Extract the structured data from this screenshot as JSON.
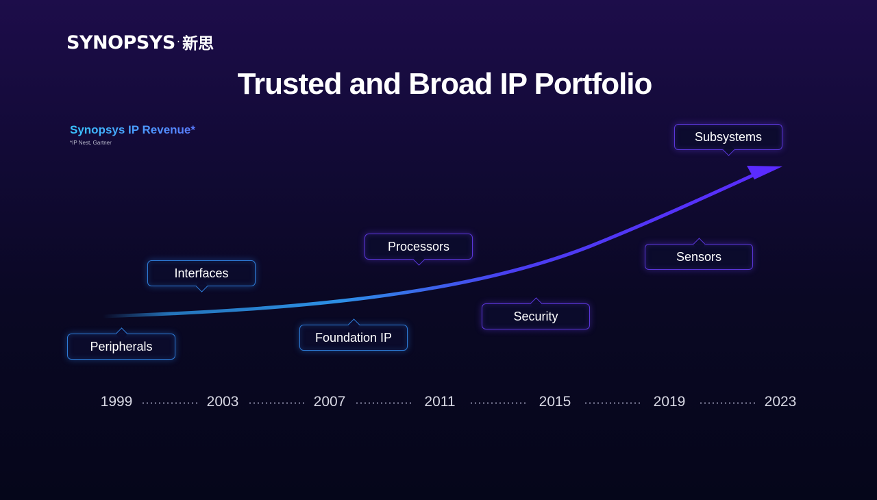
{
  "logo": {
    "wordmark": "SYNOPSYS",
    "separator": "·",
    "chinese": "新思"
  },
  "title": "Trusted and  Broad IP Portfolio",
  "revenue_label": "Synopsys IP Revenue*",
  "footnote": "*IP Nest, Gartner",
  "milestones": [
    {
      "label": "Peripherals"
    },
    {
      "label": "Interfaces"
    },
    {
      "label": "Foundation IP"
    },
    {
      "label": "Processors"
    },
    {
      "label": "Security"
    },
    {
      "label": "Sensors"
    },
    {
      "label": "Subsystems"
    }
  ],
  "years": [
    "1999",
    "2003",
    "2007",
    "2011",
    "2015",
    "2019",
    "2023"
  ],
  "colors": {
    "curve_start": "#2b8fe0",
    "curve_end": "#5b2bff",
    "tag_blue_border": "#2e7bd6",
    "tag_purple_border": "#5a36d8"
  }
}
